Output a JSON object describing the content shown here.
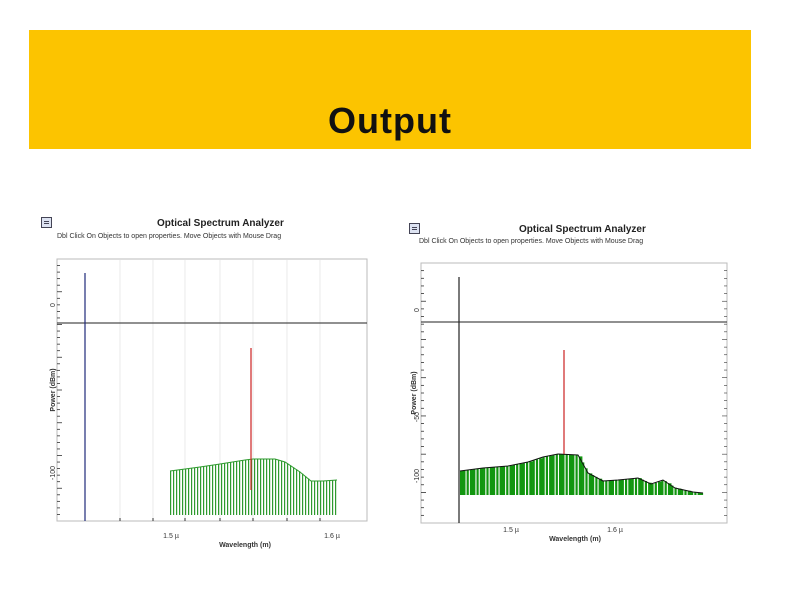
{
  "slide": {
    "title": "Output",
    "banner_color": "#fcc400"
  },
  "panels": [
    {
      "title": "Optical Spectrum Analyzer",
      "hint": "Dbl Click On Objects to open properties. Move Objects with Mouse Drag",
      "icon": "document-icon",
      "y_axis_label": "Power (dBm)",
      "x_axis_label": "Wavelength (m)",
      "x_tick_labels": [
        "1.5 µ",
        "1.6 µ"
      ],
      "y_tick_labels": [
        "0",
        "-50",
        "-100"
      ],
      "noise_color": "#2e9a2e",
      "signal_color": "#cc2222",
      "marker_color": "#1e2a7a"
    },
    {
      "title": "Optical Spectrum Analyzer",
      "hint": "Dbl Click On Objects to open properties. Move Objects with Mouse Drag",
      "icon": "document-icon",
      "y_axis_label": "Power (dBm)",
      "x_axis_label": "Wavelength (m)",
      "x_tick_labels": [
        "1.5 µ",
        "1.6 µ"
      ],
      "y_tick_labels": [
        "0",
        "-50",
        "-100"
      ],
      "noise_color": "#12960f",
      "signal_color": "#cc2222",
      "marker_color": "#222222"
    }
  ]
}
